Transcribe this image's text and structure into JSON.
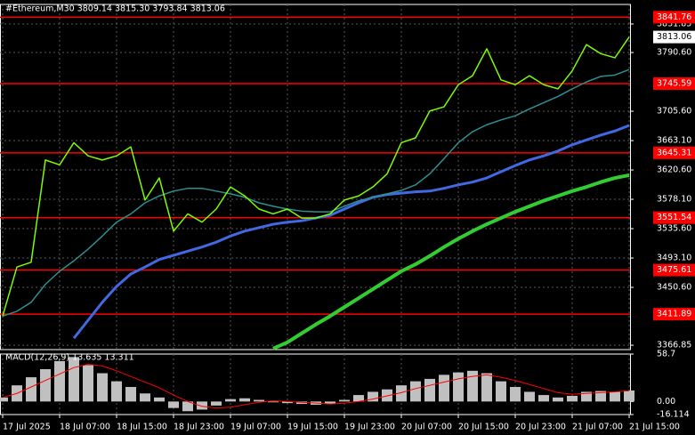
{
  "chart_data": [
    {
      "type": "line",
      "title": "#Ethereum,M30  3809.14 3815.30 3793.84 3813.06",
      "categories": [
        "17 Jul 2025",
        null,
        null,
        null,
        "18 Jul 07:00",
        null,
        null,
        null,
        "18 Jul 15:00",
        null,
        null,
        null,
        "18 Jul 23:00",
        null,
        null,
        null,
        "19 Jul 07:00",
        null,
        null,
        null,
        "19 Jul 15:00",
        null,
        null,
        null,
        "19 Jul 23:00",
        null,
        null,
        null,
        "20 Jul 07:00",
        null,
        null,
        null,
        "20 Jul 15:00",
        null,
        null,
        null,
        "20 Jul 23:00",
        null,
        null,
        null,
        "21 Jul 07:00",
        null,
        null,
        null,
        "21 Jul 15:00"
      ],
      "series": [
        {
          "color": "#7cfc00",
          "width": 1.5,
          "values": [
            3409,
            3480,
            3487,
            3635,
            3628,
            3660,
            3641,
            3635,
            3641,
            3654,
            3577,
            3609,
            3532,
            3557,
            3545,
            3564,
            3596,
            3583,
            3564,
            3557,
            3564,
            3551,
            3551,
            3557,
            3577,
            3583,
            3596,
            3615,
            3660,
            3667,
            3706,
            3712,
            3744,
            3757,
            3796,
            3751,
            3744,
            3757,
            3744,
            3738,
            3764,
            3802,
            3789,
            3783,
            3813.06
          ]
        },
        {
          "color": "#2f8f8f",
          "width": 1.5,
          "values": [
            3409,
            3416,
            3429,
            3455,
            3474,
            3489,
            3506,
            3525,
            3545,
            3557,
            3573,
            3583,
            3590,
            3594,
            3594,
            3590,
            3586,
            3581,
            3573,
            3568,
            3564,
            3561,
            3560,
            3560,
            3568,
            3576,
            3581,
            3586,
            3591,
            3599,
            3615,
            3637,
            3660,
            3676,
            3686,
            3693,
            3699,
            3709,
            3718,
            3727,
            3738,
            3748,
            3756,
            3758,
            3766
          ]
        },
        {
          "color": "#4169e1",
          "width": 3,
          "values": [
            null,
            null,
            null,
            null,
            null,
            3377,
            3403,
            3429,
            3452,
            3470,
            3480,
            3491,
            3497,
            3503,
            3509,
            3516,
            3525,
            3532,
            3537,
            3542,
            3545,
            3547,
            3551,
            3555,
            3564,
            3573,
            3581,
            3585,
            3587,
            3589,
            3590,
            3594,
            3599,
            3603,
            3609,
            3618,
            3627,
            3635,
            3641,
            3648,
            3657,
            3664,
            3671,
            3677,
            3685
          ]
        },
        {
          "color": "#32cd32",
          "width": 4,
          "values": [
            null,
            null,
            null,
            null,
            null,
            null,
            null,
            null,
            null,
            null,
            null,
            null,
            null,
            null,
            null,
            null,
            null,
            null,
            null,
            3362,
            3371,
            3384,
            3397,
            3409,
            3422,
            3435,
            3448,
            3461,
            3474,
            3484,
            3496,
            3509,
            3521,
            3532,
            3542,
            3551,
            3560,
            3568,
            3576,
            3583,
            3590,
            3596,
            3603,
            3609,
            3613
          ]
        }
      ],
      "levels": [
        3841.76,
        3745.59,
        3645.31,
        3551.54,
        3475.61,
        3411.89
      ],
      "level_color": "#ff0000",
      "last_price": 3813.06,
      "ylim": [
        3360.5,
        3860.2
      ],
      "yticks": [
        {
          "value": 3831.85,
          "label": "3831.85"
        },
        {
          "value": 3790.6,
          "label": "3790.60"
        },
        {
          "value": 3705.6,
          "label": "3705.60"
        },
        {
          "value": 3663.1,
          "label": "3663.10"
        },
        {
          "value": 3620.6,
          "label": "3620.60"
        },
        {
          "value": 3578.1,
          "label": "3578.10"
        },
        {
          "value": 3535.6,
          "label": "3535.60"
        },
        {
          "value": 3493.1,
          "label": "3493.10"
        },
        {
          "value": 3450.6,
          "label": "3450.60"
        },
        {
          "value": 3366.85,
          "label": "3366.85"
        }
      ],
      "grid": true
    },
    {
      "type": "macd",
      "title": "MACD(12,26,9) 13.635 13.311",
      "histogram": {
        "color": "#c0c0c0",
        "values": [
          5,
          20,
          30,
          40,
          50,
          55,
          45,
          35,
          25,
          18,
          10,
          5,
          -8,
          -12,
          -10,
          -5,
          3,
          4,
          2,
          -1,
          -2,
          -3,
          -4,
          -3,
          2,
          8,
          12,
          15,
          20,
          25,
          28,
          33,
          36,
          38,
          35,
          25,
          18,
          12,
          8,
          5,
          7,
          12,
          13,
          12,
          13.635
        ]
      },
      "signal": {
        "color": "#ff0000",
        "values": [
          5,
          10,
          18,
          26,
          34,
          42,
          46,
          44,
          38,
          31,
          24,
          17,
          8,
          0,
          -6,
          -8,
          -7,
          -4,
          -1,
          1,
          0,
          -1,
          -2,
          -3,
          -2,
          0,
          3,
          7,
          11,
          16,
          20,
          24,
          28,
          31,
          33,
          30,
          26,
          21,
          16,
          11,
          9,
          10,
          11,
          12,
          13.311
        ]
      },
      "ylim": [
        -16.114,
        58.7
      ],
      "yticks": [
        58.7,
        {
          "value": 0,
          "label": "0.00"
        },
        -16.114
      ]
    }
  ]
}
